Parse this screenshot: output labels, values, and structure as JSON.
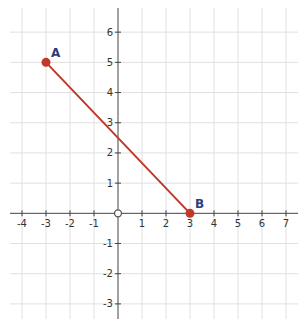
{
  "chart_data": {
    "type": "scatter",
    "series": [
      {
        "type": "line",
        "x": [
          -3,
          3
        ],
        "values": [
          5,
          0
        ],
        "color": "#c0392b",
        "marker": "circle"
      },
      {
        "type": "scatter",
        "x": [
          0
        ],
        "values": [
          0
        ],
        "color": "#555555",
        "marker": "open-circle"
      }
    ],
    "annotations": [
      {
        "text": "A",
        "x": -3,
        "y": 5
      },
      {
        "text": "B",
        "x": 3,
        "y": 0
      }
    ],
    "xlim": [
      -4.5,
      7.5
    ],
    "ylim": [
      -3.5,
      6.8
    ],
    "xticks": [
      -4,
      -3,
      -2,
      -1,
      1,
      2,
      3,
      4,
      5,
      6,
      7
    ],
    "yticks": [
      -3,
      -2,
      -1,
      1,
      2,
      3,
      4,
      5,
      6
    ],
    "grid": true
  }
}
